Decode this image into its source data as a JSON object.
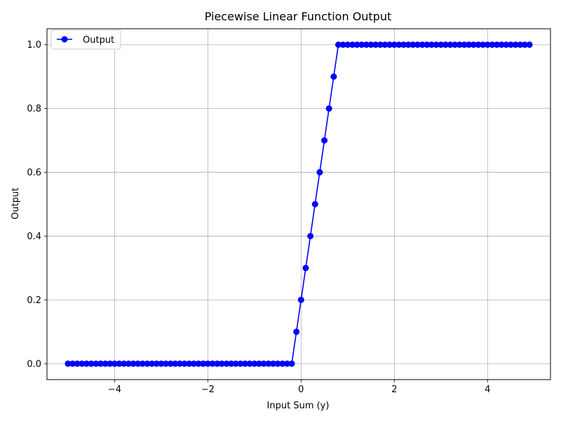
{
  "chart_data": {
    "type": "line",
    "title": "Piecewise Linear Function Output",
    "xlabel": "Input Sum (y)",
    "ylabel": "Output",
    "xlim": [
      -5.45,
      5.35
    ],
    "ylim": [
      -0.05,
      1.05
    ],
    "xticks": [
      -4,
      -2,
      0,
      2,
      4
    ],
    "xtick_labels": [
      "−4",
      "−2",
      "0",
      "2",
      "4"
    ],
    "yticks": [
      0.0,
      0.2,
      0.4,
      0.6,
      0.8,
      1.0
    ],
    "ytick_labels": [
      "0.0",
      "0.2",
      "0.4",
      "0.6",
      "0.8",
      "1.0"
    ],
    "grid": true,
    "legend_position": "top-left",
    "series": [
      {
        "name": "Output",
        "color": "#0000ff",
        "marker": "circle",
        "x": [
          -5.0,
          -4.9,
          -4.8,
          -4.7,
          -4.6,
          -4.5,
          -4.4,
          -4.3,
          -4.2,
          -4.1,
          -4.0,
          -3.9,
          -3.8,
          -3.7,
          -3.6,
          -3.5,
          -3.4,
          -3.3,
          -3.2,
          -3.1,
          -3.0,
          -2.9,
          -2.8,
          -2.7,
          -2.6,
          -2.5,
          -2.4,
          -2.3,
          -2.2,
          -2.1,
          -2.0,
          -1.9,
          -1.8,
          -1.7,
          -1.6,
          -1.5,
          -1.4,
          -1.3,
          -1.2,
          -1.1,
          -1.0,
          -0.9,
          -0.8,
          -0.7,
          -0.6,
          -0.5,
          -0.4,
          -0.3,
          -0.2,
          -0.1,
          0.0,
          0.1,
          0.2,
          0.3,
          0.4,
          0.5,
          0.6,
          0.7,
          0.8,
          0.9,
          1.0,
          1.1,
          1.2,
          1.3,
          1.4,
          1.5,
          1.6,
          1.7,
          1.8,
          1.9,
          2.0,
          2.1,
          2.2,
          2.3,
          2.4,
          2.5,
          2.6,
          2.7,
          2.8,
          2.9,
          3.0,
          3.1,
          3.2,
          3.3,
          3.4,
          3.5,
          3.6,
          3.7,
          3.8,
          3.9,
          4.0,
          4.1,
          4.2,
          4.3,
          4.4,
          4.5,
          4.6,
          4.7,
          4.8,
          4.9
        ],
        "y": [
          0,
          0,
          0,
          0,
          0,
          0,
          0,
          0,
          0,
          0,
          0,
          0,
          0,
          0,
          0,
          0,
          0,
          0,
          0,
          0,
          0,
          0,
          0,
          0,
          0,
          0,
          0,
          0,
          0,
          0,
          0,
          0,
          0,
          0,
          0,
          0,
          0,
          0,
          0,
          0,
          0,
          0,
          0,
          0,
          0,
          0,
          0,
          0,
          0,
          0.1,
          0.2,
          0.3,
          0.4,
          0.5,
          0.6,
          0.7,
          0.8,
          0.9,
          1.0,
          1.0,
          1.0,
          1.0,
          1.0,
          1.0,
          1.0,
          1.0,
          1.0,
          1.0,
          1.0,
          1.0,
          1.0,
          1.0,
          1.0,
          1.0,
          1.0,
          1.0,
          1.0,
          1.0,
          1.0,
          1.0,
          1.0,
          1.0,
          1.0,
          1.0,
          1.0,
          1.0,
          1.0,
          1.0,
          1.0,
          1.0,
          1.0,
          1.0,
          1.0,
          1.0,
          1.0,
          1.0,
          1.0,
          1.0,
          1.0,
          1.0
        ]
      }
    ]
  }
}
